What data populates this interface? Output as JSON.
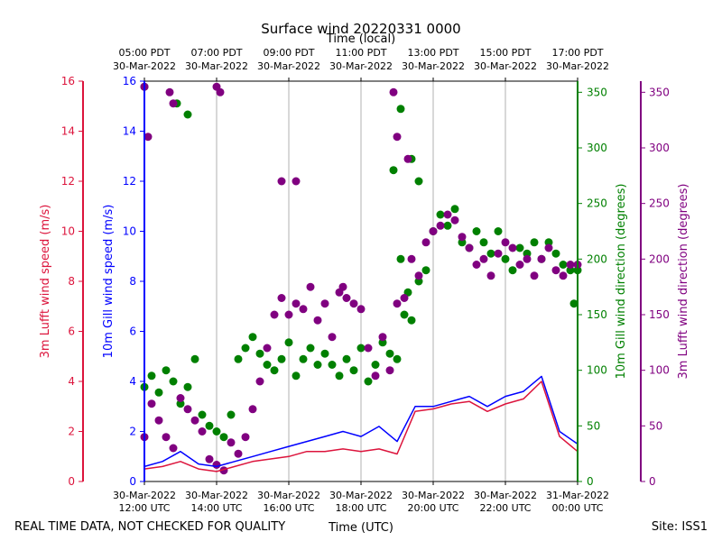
{
  "chart_data": {
    "type": "line+scatter",
    "title": "Surface wind 20220331 0000",
    "top_axis_label": "Time (local)",
    "top_ticks": [
      {
        "hour": 12,
        "line1": "05:00 PDT",
        "line2": "30-Mar-2022"
      },
      {
        "hour": 14,
        "line1": "07:00 PDT",
        "line2": "30-Mar-2022"
      },
      {
        "hour": 16,
        "line1": "09:00 PDT",
        "line2": "30-Mar-2022"
      },
      {
        "hour": 18,
        "line1": "11:00 PDT",
        "line2": "30-Mar-2022"
      },
      {
        "hour": 20,
        "line1": "13:00 PDT",
        "line2": "30-Mar-2022"
      },
      {
        "hour": 22,
        "line1": "15:00 PDT",
        "line2": "30-Mar-2022"
      },
      {
        "hour": 24,
        "line1": "17:00 PDT",
        "line2": "30-Mar-2022"
      }
    ],
    "bottom_axis_label": "Time (UTC)",
    "bottom_ticks": [
      {
        "hour": 12,
        "line1": "30-Mar-2022",
        "line2": "12:00 UTC"
      },
      {
        "hour": 14,
        "line1": "30-Mar-2022",
        "line2": "14:00 UTC"
      },
      {
        "hour": 16,
        "line1": "30-Mar-2022",
        "line2": "16:00 UTC"
      },
      {
        "hour": 18,
        "line1": "30-Mar-2022",
        "line2": "18:00 UTC"
      },
      {
        "hour": 20,
        "line1": "30-Mar-2022",
        "line2": "20:00 UTC"
      },
      {
        "hour": 22,
        "line1": "30-Mar-2022",
        "line2": "22:00 UTC"
      },
      {
        "hour": 24,
        "line1": "31-Mar-2022",
        "line2": "00:00 UTC"
      }
    ],
    "xlim_hours": [
      12,
      24
    ],
    "speed_ylim": [
      0,
      16
    ],
    "speed_ticks": [
      "0",
      "2",
      "4",
      "6",
      "8",
      "10",
      "12",
      "14",
      "16"
    ],
    "direction_ylim": [
      0,
      360
    ],
    "direction_ticks": [
      "0",
      "50",
      "100",
      "150",
      "200",
      "250",
      "300",
      "350"
    ],
    "axes": {
      "lufft_speed": {
        "label": "3m Lufft wind speed (m/s)",
        "color": "#dc143c"
      },
      "gill_speed": {
        "label": "10m Gill wind speed (m/s)",
        "color": "#0000ff"
      },
      "gill_direction": {
        "label": "10m Gill wind direction (degrees)",
        "color": "#008000"
      },
      "lufft_direction": {
        "label": "3m Lufft wind direction (degrees)",
        "color": "#800080"
      }
    },
    "series": [
      {
        "name": "10m Gill wind speed",
        "kind": "line",
        "color": "#0000ff",
        "units": "m/s",
        "x": [
          12.0,
          12.5,
          13.0,
          13.5,
          14.0,
          14.5,
          15.0,
          15.5,
          16.0,
          16.5,
          17.0,
          17.5,
          18.0,
          18.5,
          19.0,
          19.5,
          20.0,
          20.5,
          21.0,
          21.5,
          22.0,
          22.5,
          23.0,
          23.5,
          24.0
        ],
        "y": [
          0.6,
          0.8,
          1.2,
          0.7,
          0.6,
          0.8,
          1.0,
          1.2,
          1.4,
          1.6,
          1.8,
          2.0,
          1.8,
          2.2,
          1.6,
          3.0,
          3.0,
          3.2,
          3.4,
          3.0,
          3.4,
          3.6,
          4.2,
          2.0,
          1.5
        ]
      },
      {
        "name": "3m Lufft wind speed",
        "kind": "line",
        "color": "#dc143c",
        "units": "m/s",
        "x": [
          12.0,
          12.5,
          13.0,
          13.5,
          14.0,
          14.5,
          15.0,
          15.5,
          16.0,
          16.5,
          17.0,
          17.5,
          18.0,
          18.5,
          19.0,
          19.5,
          20.0,
          20.5,
          21.0,
          21.5,
          22.0,
          22.5,
          23.0,
          23.5,
          24.0
        ],
        "y": [
          0.5,
          0.6,
          0.8,
          0.5,
          0.4,
          0.6,
          0.8,
          0.9,
          1.0,
          1.2,
          1.2,
          1.3,
          1.2,
          1.3,
          1.1,
          2.8,
          2.9,
          3.1,
          3.2,
          2.8,
          3.1,
          3.3,
          4.0,
          1.8,
          1.2
        ]
      },
      {
        "name": "10m Gill wind direction",
        "kind": "scatter",
        "color": "#008000",
        "units": "degrees",
        "x": [
          12.0,
          12.2,
          12.4,
          12.6,
          12.8,
          13.0,
          13.2,
          13.4,
          13.6,
          13.8,
          14.0,
          14.2,
          14.4,
          14.6,
          14.8,
          15.0,
          15.2,
          15.4,
          15.6,
          15.8,
          16.0,
          16.2,
          16.4,
          16.6,
          16.8,
          17.0,
          17.2,
          17.4,
          17.6,
          17.8,
          18.0,
          18.2,
          18.4,
          18.6,
          18.8,
          19.0,
          19.2,
          19.4,
          19.6,
          19.8,
          20.0,
          20.2,
          20.4,
          20.6,
          20.8,
          21.0,
          21.2,
          21.4,
          21.6,
          21.8,
          22.0,
          22.2,
          22.4,
          22.6,
          22.8,
          23.0,
          23.2,
          23.4,
          23.6,
          23.8,
          24.0,
          12.0,
          12.9,
          13.2,
          18.9,
          19.1,
          19.4,
          19.6,
          23.9,
          19.1,
          19.3
        ],
        "y": [
          85,
          95,
          80,
          100,
          90,
          70,
          85,
          110,
          60,
          50,
          45,
          40,
          60,
          110,
          120,
          130,
          115,
          105,
          100,
          110,
          125,
          95,
          110,
          120,
          105,
          115,
          105,
          95,
          110,
          100,
          120,
          90,
          105,
          125,
          115,
          110,
          150,
          145,
          180,
          190,
          225,
          240,
          230,
          245,
          215,
          210,
          225,
          215,
          205,
          225,
          200,
          190,
          210,
          205,
          215,
          200,
          215,
          205,
          195,
          190,
          190,
          355,
          340,
          330,
          280,
          335,
          290,
          270,
          160,
          200,
          170
        ]
      },
      {
        "name": "3m Lufft wind direction",
        "kind": "scatter",
        "color": "#800080",
        "units": "degrees",
        "x": [
          12.0,
          12.2,
          12.4,
          12.6,
          12.8,
          13.0,
          13.2,
          13.4,
          13.6,
          13.8,
          14.0,
          14.2,
          14.4,
          14.6,
          14.8,
          15.0,
          15.2,
          15.4,
          15.6,
          15.8,
          16.0,
          16.2,
          16.4,
          16.6,
          16.8,
          17.0,
          17.2,
          17.4,
          17.6,
          17.8,
          18.0,
          18.2,
          18.4,
          18.6,
          18.8,
          19.0,
          19.2,
          19.4,
          19.6,
          19.8,
          20.0,
          20.2,
          20.4,
          20.6,
          20.8,
          21.0,
          21.2,
          21.4,
          21.6,
          21.8,
          22.0,
          22.2,
          22.4,
          22.6,
          22.8,
          23.0,
          23.2,
          23.4,
          23.6,
          23.8,
          24.0,
          12.0,
          12.1,
          12.7,
          12.8,
          14.0,
          14.1,
          15.8,
          16.2,
          17.5,
          18.9,
          19.0,
          19.3
        ],
        "y": [
          40,
          70,
          55,
          40,
          30,
          75,
          65,
          55,
          45,
          20,
          15,
          10,
          35,
          25,
          40,
          65,
          90,
          120,
          150,
          165,
          150,
          160,
          155,
          175,
          145,
          160,
          130,
          170,
          165,
          160,
          155,
          120,
          95,
          130,
          100,
          160,
          165,
          200,
          185,
          215,
          225,
          230,
          240,
          235,
          220,
          210,
          195,
          200,
          185,
          205,
          215,
          210,
          195,
          200,
          185,
          200,
          210,
          190,
          185,
          195,
          195,
          355,
          310,
          350,
          340,
          355,
          350,
          270,
          270,
          175,
          350,
          310,
          290
        ]
      }
    ],
    "footer_left": "REAL TIME DATA, NOT CHECKED FOR QUALITY",
    "footer_right": "Site: ISS1"
  }
}
